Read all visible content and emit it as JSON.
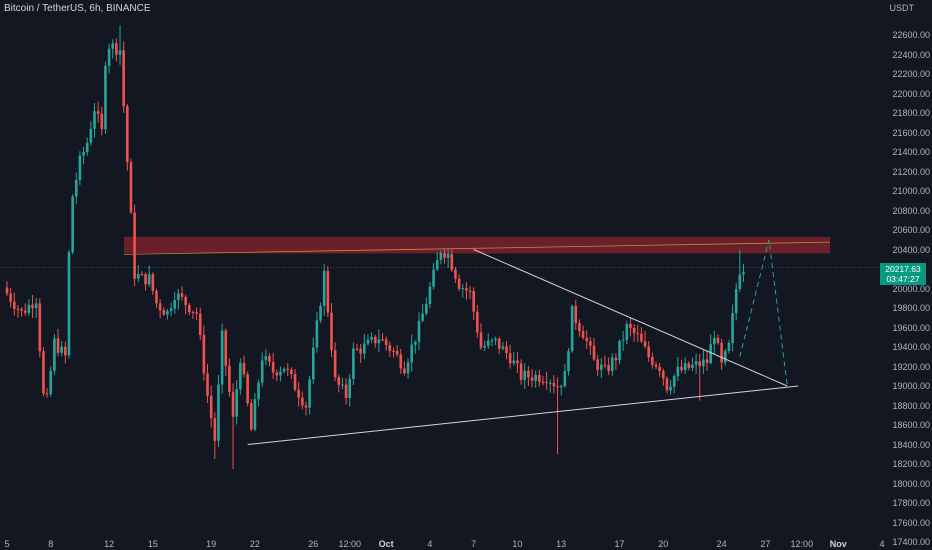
{
  "header": {
    "symbol_line": "Bitcoin / TetherUS, 6h, BINANCE"
  },
  "price_axis_label": "USDT",
  "current_price": {
    "price": "20217.63",
    "countdown": "03:47:27",
    "color": "#089981"
  },
  "colors": {
    "up": "#26a69a",
    "down": "#ef5350",
    "resistance_zone": "#b22833",
    "trendline": "#d1d4dc",
    "projection": "#26a69a"
  },
  "chart_data": {
    "type": "candlestick",
    "title": "Bitcoin / TetherUS, 6h, BINANCE",
    "ylabel": "USDT",
    "ylim": [
      17300,
      22750
    ],
    "grid": false,
    "y_ticks": [
      "22600.00",
      "22400.00",
      "22200.00",
      "22000.00",
      "21800.00",
      "21600.00",
      "21400.00",
      "21200.00",
      "21000.00",
      "20800.00",
      "20600.00",
      "20400.00",
      "20000.00",
      "19800.00",
      "19600.00",
      "19400.00",
      "19200.00",
      "19000.00",
      "18800.00",
      "18600.00",
      "18400.00",
      "18200.00",
      "18000.00",
      "17800.00",
      "17600.00",
      "17400.00"
    ],
    "x_ticks": [
      {
        "label": "5",
        "bold": false,
        "slot": 0
      },
      {
        "label": "8",
        "bold": false,
        "slot": 12
      },
      {
        "label": "12",
        "bold": false,
        "slot": 28
      },
      {
        "label": "15",
        "bold": false,
        "slot": 40
      },
      {
        "label": "19",
        "bold": false,
        "slot": 56
      },
      {
        "label": "22",
        "bold": false,
        "slot": 68
      },
      {
        "label": "26",
        "bold": false,
        "slot": 84
      },
      {
        "label": "12:00",
        "bold": false,
        "slot": 94
      },
      {
        "label": "Oct",
        "bold": true,
        "slot": 104
      },
      {
        "label": "4",
        "bold": false,
        "slot": 116
      },
      {
        "label": "7",
        "bold": false,
        "slot": 128
      },
      {
        "label": "10",
        "bold": false,
        "slot": 140
      },
      {
        "label": "13",
        "bold": false,
        "slot": 152
      },
      {
        "label": "17",
        "bold": false,
        "slot": 168
      },
      {
        "label": "20",
        "bold": false,
        "slot": 180
      },
      {
        "label": "24",
        "bold": false,
        "slot": 196
      },
      {
        "label": "27",
        "bold": false,
        "slot": 208
      },
      {
        "label": "12:00",
        "bold": false,
        "slot": 218
      },
      {
        "label": "Nov",
        "bold": true,
        "slot": 228
      },
      {
        "label": "4",
        "bold": false,
        "slot": 240
      }
    ],
    "candle_close_path": [
      [
        0,
        19950
      ],
      [
        4,
        19750
      ],
      [
        8,
        19900
      ],
      [
        10,
        18900
      ],
      [
        11,
        18850
      ],
      [
        13,
        19450
      ],
      [
        16,
        19300
      ],
      [
        17,
        20350
      ],
      [
        18,
        20950
      ],
      [
        20,
        21300
      ],
      [
        22,
        21500
      ],
      [
        24,
        21850
      ],
      [
        26,
        21600
      ],
      [
        27,
        22350
      ],
      [
        28,
        22500
      ],
      [
        31,
        22450
      ],
      [
        35,
        20150
      ],
      [
        37,
        20100
      ],
      [
        39,
        20100
      ],
      [
        41,
        19850
      ],
      [
        44,
        19750
      ],
      [
        46,
        19950
      ],
      [
        49,
        19850
      ],
      [
        52,
        19750
      ],
      [
        55,
        18900
      ],
      [
        57,
        18450
      ],
      [
        59,
        19500
      ],
      [
        62,
        18650
      ],
      [
        64,
        19300
      ],
      [
        67,
        18550
      ],
      [
        70,
        19300
      ],
      [
        73,
        19150
      ],
      [
        76,
        19200
      ],
      [
        79,
        19000
      ],
      [
        82,
        18800
      ],
      [
        87,
        20150
      ],
      [
        90,
        19050
      ],
      [
        93,
        18900
      ],
      [
        95,
        19350
      ],
      [
        98,
        19400
      ],
      [
        102,
        19500
      ],
      [
        106,
        19350
      ],
      [
        109,
        19200
      ],
      [
        113,
        19600
      ],
      [
        116,
        20000
      ],
      [
        119,
        20400
      ],
      [
        121,
        20350
      ],
      [
        124,
        20050
      ],
      [
        127,
        19950
      ],
      [
        130,
        19400
      ],
      [
        134,
        19450
      ],
      [
        138,
        19300
      ],
      [
        141,
        19100
      ],
      [
        144,
        19100
      ],
      [
        148,
        19100
      ],
      [
        151,
        19000
      ],
      [
        153,
        19100
      ],
      [
        155,
        19750
      ],
      [
        158,
        19550
      ],
      [
        161,
        19250
      ],
      [
        164,
        19150
      ],
      [
        167,
        19300
      ],
      [
        170,
        19600
      ],
      [
        173,
        19500
      ],
      [
        176,
        19300
      ],
      [
        179,
        19200
      ],
      [
        181,
        19000
      ],
      [
        184,
        19150
      ],
      [
        188,
        19200
      ],
      [
        192,
        19250
      ],
      [
        194,
        19550
      ],
      [
        196,
        19200
      ],
      [
        198,
        19400
      ],
      [
        200,
        20000
      ],
      [
        201,
        20200
      ],
      [
        202,
        20217
      ]
    ],
    "notable_wicks": [
      {
        "slot": 31,
        "high": 22700
      },
      {
        "slot": 57,
        "low": 18250
      },
      {
        "slot": 62,
        "low": 18150
      },
      {
        "slot": 151,
        "low": 18300
      },
      {
        "slot": 190,
        "low": 18850
      },
      {
        "slot": 201,
        "high": 20400
      }
    ],
    "annotations": {
      "resistance_zone": {
        "from": 20360,
        "to": 20530,
        "mid": 20455
      },
      "descending_trendline": [
        [
          128,
          20400
        ],
        [
          214,
          19000
        ]
      ],
      "ascending_support": [
        [
          66,
          18400
        ],
        [
          217,
          19000
        ]
      ],
      "projection_path": [
        [
          201,
          19300
        ],
        [
          209,
          20500
        ],
        [
          214,
          19000
        ]
      ]
    }
  }
}
